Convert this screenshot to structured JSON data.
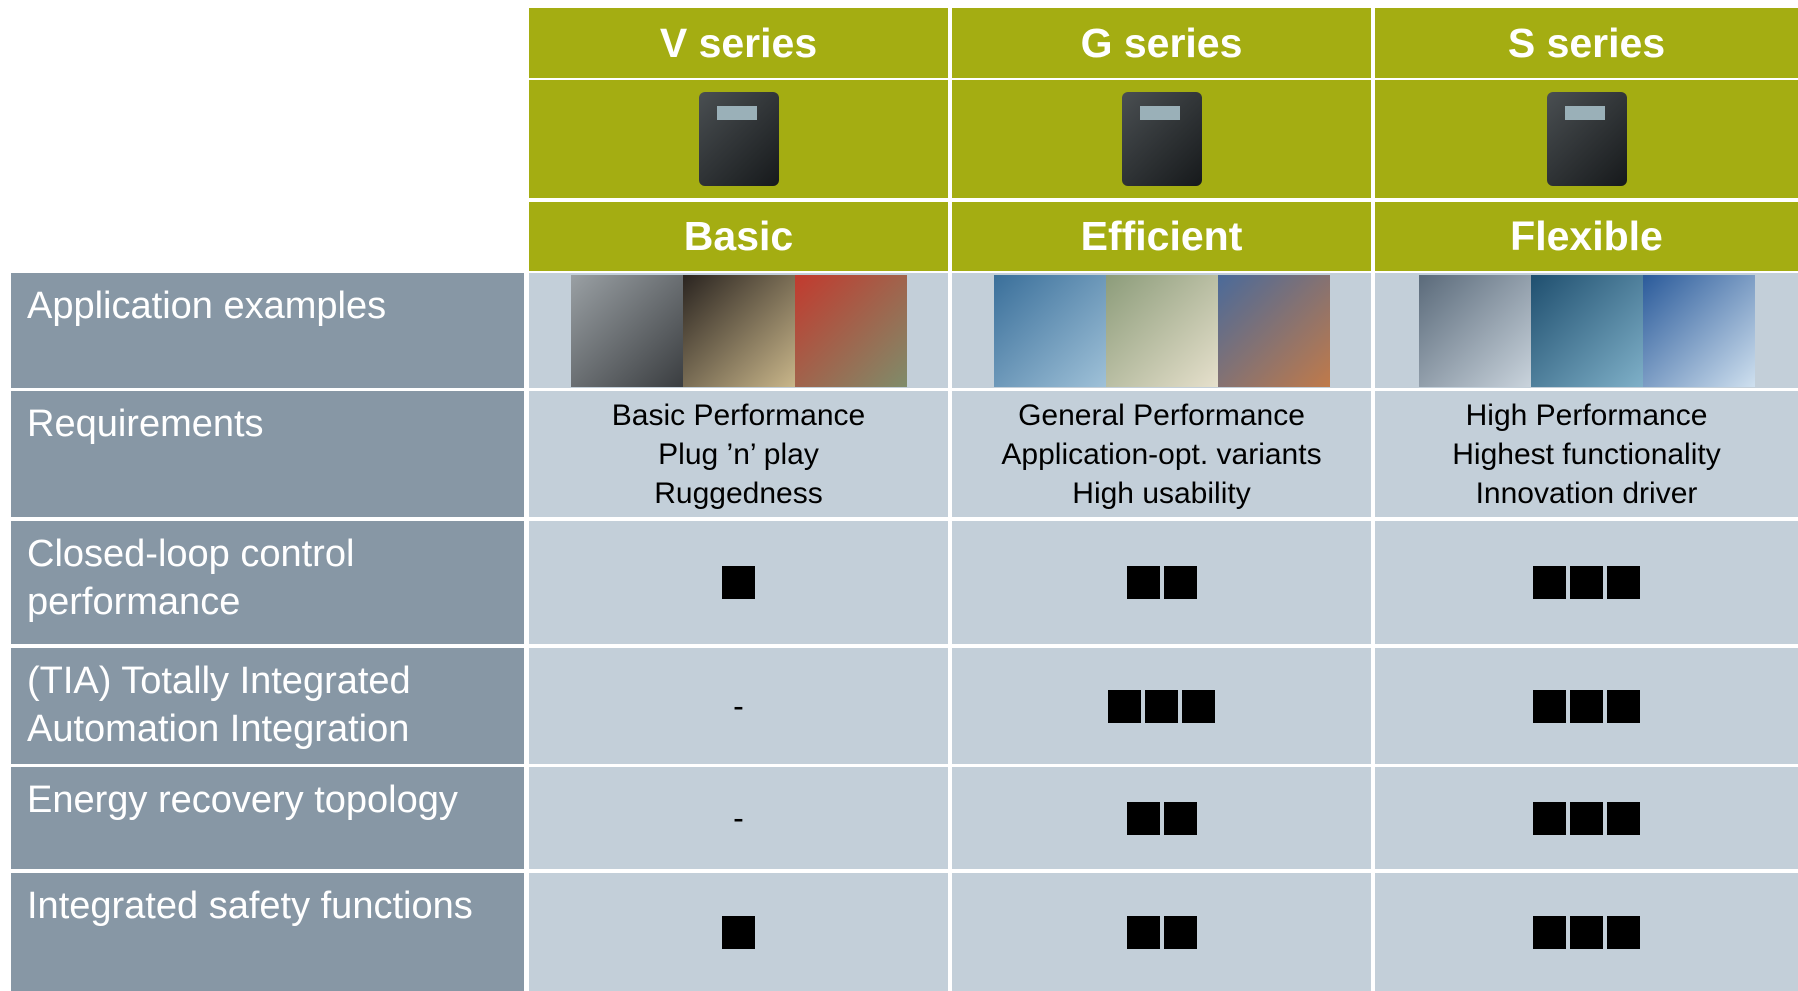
{
  "columns": [
    {
      "series": "V series",
      "class": "Basic"
    },
    {
      "series": "G series",
      "class": "Efficient"
    },
    {
      "series": "S series",
      "class": "Flexible"
    }
  ],
  "rows": [
    {
      "label": "Application examples"
    },
    {
      "label": "Requirements",
      "cells": [
        [
          "Basic Performance",
          "Plug ’n’ play",
          "Ruggedness"
        ],
        [
          "General Performance",
          "Application-opt. variants",
          "High usability"
        ],
        [
          "High Performance",
          "Highest functionality",
          "Innovation driver"
        ]
      ]
    },
    {
      "label": "Closed-loop control performance",
      "cells": [
        1,
        2,
        3
      ]
    },
    {
      "label": "(TIA) Totally Integrated Automation Integration",
      "cells": [
        "-",
        3,
        3
      ]
    },
    {
      "label": "Energy recovery topology",
      "cells": [
        "-",
        2,
        3
      ]
    },
    {
      "label": "Integrated safety functions",
      "cells": [
        1,
        2,
        3
      ]
    }
  ]
}
